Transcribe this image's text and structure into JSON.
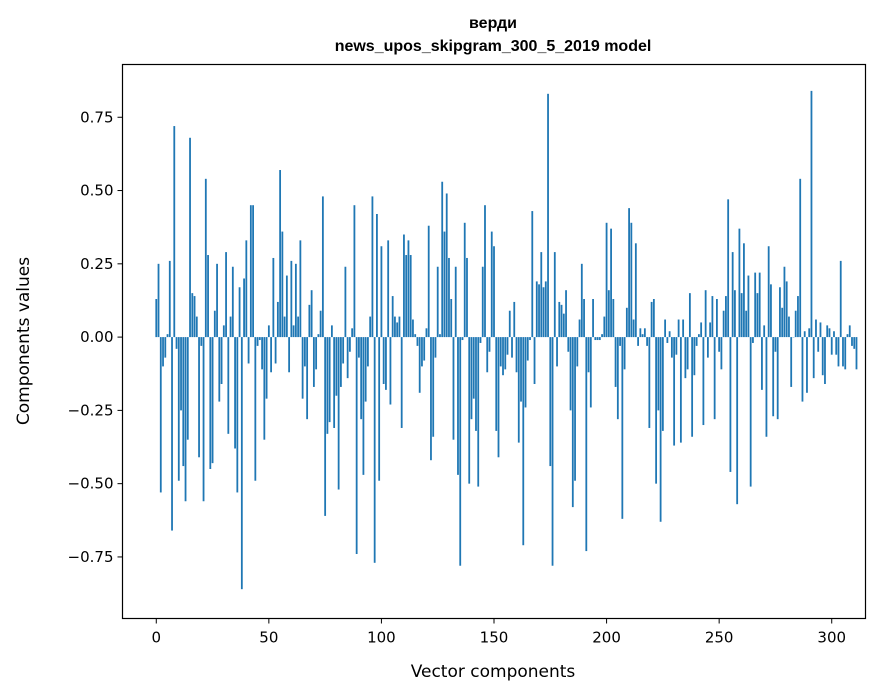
{
  "chart_data": {
    "type": "bar",
    "title_line1": "верди",
    "title_line2": "news_upos_skipgram_300_5_2019 model",
    "xlabel": "Vector components",
    "ylabel": "Components values",
    "xlim": [
      -15,
      315
    ],
    "ylim": [
      -0.96,
      0.93
    ],
    "xticks": [
      0,
      50,
      100,
      150,
      200,
      250,
      300
    ],
    "xtick_labels": [
      "0",
      "50",
      "100",
      "150",
      "200",
      "250",
      "300"
    ],
    "yticks": [
      -0.75,
      -0.5,
      -0.25,
      0.0,
      0.25,
      0.5,
      0.75
    ],
    "ytick_labels": [
      "−0.75",
      "−0.50",
      "−0.25",
      "0.00",
      "0.25",
      "0.50",
      "0.75"
    ],
    "bar_color": "#1f77b4",
    "values": [
      0.13,
      0.25,
      -0.53,
      -0.1,
      -0.07,
      0.01,
      0.26,
      -0.66,
      0.72,
      -0.04,
      -0.49,
      -0.25,
      -0.44,
      -0.56,
      -0.35,
      0.68,
      0.15,
      0.14,
      0.07,
      -0.41,
      -0.03,
      -0.56,
      0.54,
      0.28,
      -0.45,
      -0.43,
      0.09,
      0.25,
      -0.22,
      -0.16,
      0.04,
      0.29,
      -0.33,
      0.07,
      0.24,
      -0.38,
      -0.53,
      0.17,
      -0.86,
      0.2,
      0.33,
      -0.09,
      0.45,
      0.45,
      -0.49,
      -0.03,
      -0.01,
      -0.11,
      -0.35,
      -0.21,
      0.04,
      -0.12,
      0.27,
      -0.09,
      0.12,
      0.57,
      0.36,
      0.07,
      0.21,
      -0.12,
      0.26,
      0.04,
      0.25,
      0.07,
      0.33,
      -0.21,
      -0.1,
      -0.28,
      0.11,
      0.16,
      -0.17,
      -0.11,
      0.01,
      0.09,
      0.48,
      -0.61,
      -0.33,
      -0.29,
      0.04,
      -0.31,
      -0.2,
      -0.52,
      -0.17,
      -0.09,
      0.24,
      -0.14,
      -0.05,
      0.03,
      0.45,
      -0.74,
      -0.07,
      -0.28,
      -0.47,
      -0.22,
      -0.1,
      0.07,
      0.48,
      -0.77,
      0.42,
      -0.49,
      0.31,
      -0.16,
      -0.18,
      0.33,
      -0.23,
      0.14,
      0.07,
      0.05,
      0.07,
      -0.31,
      0.35,
      0.28,
      0.33,
      0.28,
      0.06,
      0.01,
      -0.03,
      -0.19,
      -0.1,
      -0.08,
      0.03,
      0.38,
      -0.42,
      -0.34,
      -0.07,
      0.24,
      0.01,
      0.53,
      0.36,
      0.49,
      0.27,
      0.13,
      -0.35,
      0.24,
      -0.47,
      -0.78,
      -0.01,
      0.39,
      0.27,
      -0.5,
      -0.28,
      -0.21,
      -0.32,
      -0.51,
      -0.02,
      0.24,
      0.45,
      -0.12,
      -0.05,
      0.36,
      0.31,
      -0.32,
      -0.41,
      -0.1,
      -0.13,
      -0.11,
      -0.06,
      0.09,
      -0.07,
      0.12,
      -0.12,
      -0.36,
      -0.22,
      -0.71,
      -0.24,
      -0.08,
      -0.01,
      0.43,
      -0.16,
      0.19,
      0.18,
      0.29,
      0.17,
      0.19,
      0.83,
      -0.44,
      -0.78,
      0.29,
      -0.1,
      0.12,
      0.11,
      0.08,
      0.16,
      -0.05,
      -0.25,
      -0.58,
      -0.49,
      -0.1,
      0.06,
      0.25,
      0.13,
      -0.73,
      -0.12,
      -0.24,
      0.13,
      -0.01,
      -0.01,
      -0.01,
      0.01,
      0.07,
      0.39,
      0.16,
      0.37,
      0.13,
      -0.17,
      -0.28,
      -0.03,
      -0.62,
      -0.11,
      0.1,
      0.44,
      0.39,
      0.06,
      0.32,
      -0.03,
      0.03,
      0.01,
      0.03,
      -0.03,
      -0.31,
      0.12,
      0.13,
      -0.5,
      -0.25,
      -0.63,
      -0.32,
      0.06,
      -0.02,
      0.02,
      -0.07,
      -0.37,
      -0.06,
      0.06,
      -0.36,
      0.06,
      -0.14,
      -0.11,
      0.15,
      -0.34,
      -0.13,
      -0.03,
      0.01,
      0.05,
      -0.3,
      0.16,
      -0.07,
      0.05,
      0.14,
      -0.28,
      0.13,
      -0.05,
      -0.11,
      0.09,
      0.14,
      0.47,
      -0.46,
      0.29,
      0.16,
      -0.57,
      0.37,
      0.15,
      0.32,
      0.09,
      0.21,
      -0.51,
      -0.02,
      0.22,
      0.15,
      0.22,
      -0.18,
      0.04,
      -0.34,
      0.31,
      0.18,
      -0.27,
      -0.05,
      -0.28,
      0.17,
      0.1,
      0.24,
      0.19,
      0.07,
      -0.17,
      0.0,
      0.09,
      0.14,
      0.54,
      -0.22,
      0.02,
      -0.19,
      0.03,
      0.84,
      -0.14,
      0.06,
      -0.05,
      0.05,
      -0.13,
      -0.16,
      0.04,
      0.03,
      -0.06,
      0.02,
      -0.06,
      -0.1,
      0.26,
      -0.1,
      -0.11,
      0.01,
      0.04,
      -0.03,
      -0.04,
      -0.11
    ]
  }
}
